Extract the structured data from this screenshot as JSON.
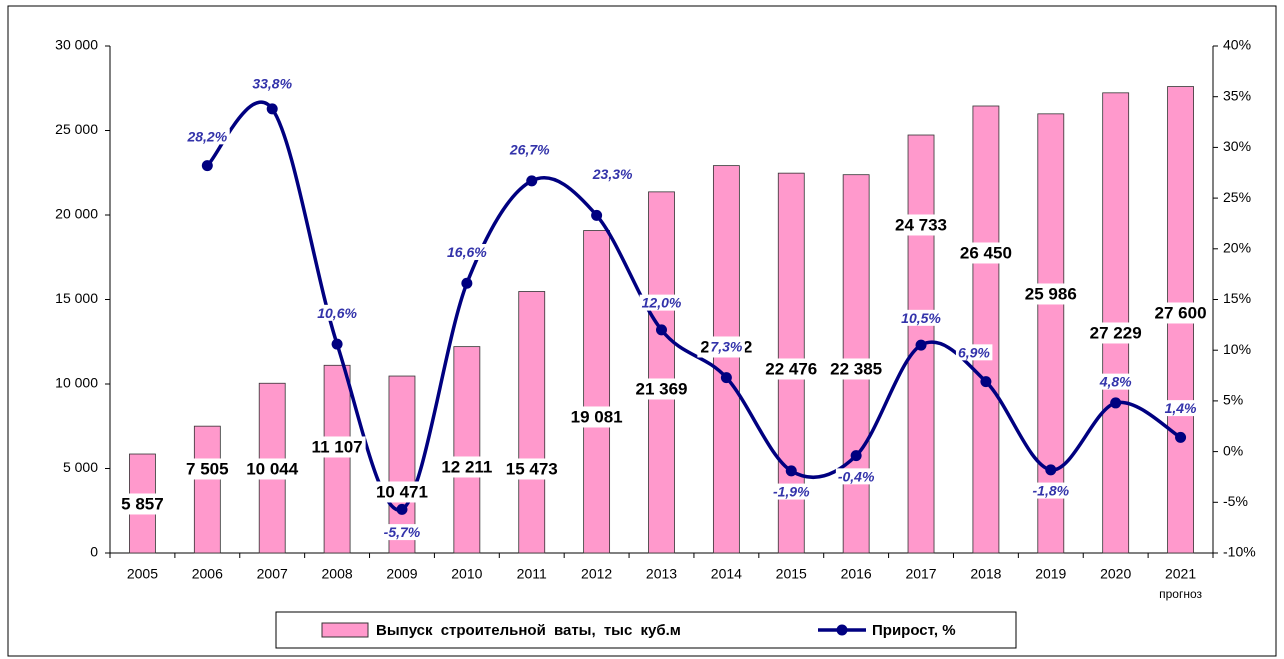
{
  "chart_data": {
    "type": "bar_line",
    "categories": [
      "2005",
      "2006",
      "2007",
      "2008",
      "2009",
      "2010",
      "2011",
      "2012",
      "2013",
      "2014",
      "2015",
      "2016",
      "2017",
      "2018",
      "2019",
      "2020",
      "2021"
    ],
    "annotations": [
      "прогноз"
    ],
    "series": [
      {
        "name": "Выпуск строительной ваты, тыс куб.м",
        "type": "bar",
        "color": "#ff99cc",
        "values": [
          5857,
          7505,
          10044,
          11107,
          10471,
          12211,
          15473,
          19081,
          21369,
          22922,
          22476,
          22385,
          24733,
          26450,
          25986,
          27229,
          27600
        ],
        "value_labels": [
          "5 857",
          "7 505",
          "10 044",
          "11 107",
          "10 471",
          "12 211",
          "15 473",
          "19 081",
          "21 369",
          "22 922",
          "22 476",
          "22 385",
          "24 733",
          "26 450",
          "25 986",
          "27 229",
          "27 600"
        ]
      },
      {
        "name": "Прирост, %",
        "type": "line",
        "axis": "y2",
        "color": "#000080",
        "values": [
          null,
          28.2,
          33.8,
          10.6,
          -5.7,
          16.6,
          26.7,
          23.3,
          12.0,
          7.3,
          -1.9,
          -0.4,
          10.5,
          6.9,
          -1.8,
          4.8,
          1.4
        ],
        "value_labels": [
          null,
          "28,2%",
          "33,8%",
          "10,6%",
          "-5,7%",
          "16,6%",
          "26,7%",
          "23,3%",
          "12,0%",
          "7,3%",
          "-1,9%",
          "-0,4%",
          "10,5%",
          "6,9%",
          "-1,8%",
          "4,8%",
          "1,4%"
        ]
      }
    ],
    "ylim": [
      0,
      30000
    ],
    "yticks": [
      0,
      {
        "value": 5000,
        "label": "5 000"
      },
      {
        "value": 10000,
        "label": "10 000"
      },
      {
        "value": 15000,
        "label": "15 000"
      },
      {
        "value": 20000,
        "label": "20 000"
      },
      {
        "value": 25000,
        "label": "25 000"
      },
      {
        "value": 30000,
        "label": "30 000"
      }
    ],
    "y2lim": [
      -10,
      40
    ],
    "y2ticks": [
      {
        "value": -10,
        "label": "-10%"
      },
      {
        "value": -5,
        "label": "-5%"
      },
      {
        "value": 0,
        "label": "0%"
      },
      {
        "value": 5,
        "label": "5%"
      },
      {
        "value": 10,
        "label": "10%"
      },
      {
        "value": 15,
        "label": "15%"
      },
      {
        "value": 20,
        "label": "20%"
      },
      {
        "value": 25,
        "label": "25%"
      },
      {
        "value": 30,
        "label": "30%"
      },
      {
        "value": 35,
        "label": "35%"
      },
      {
        "value": 40,
        "label": "40%"
      }
    ],
    "legend": "bottom"
  }
}
